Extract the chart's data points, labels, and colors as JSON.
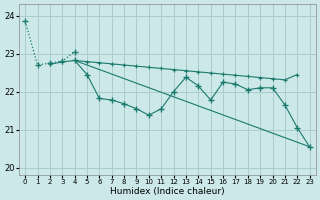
{
  "bg_color": "#cce8e8",
  "grid_color": "#aacccc",
  "line_color": "#1a7a6e",
  "xlabel": "Humidex (Indice chaleur)",
  "ylim": [
    19.8,
    24.3
  ],
  "xlim": [
    -0.5,
    23.5
  ],
  "yticks": [
    20,
    21,
    22,
    23,
    24
  ],
  "xticks": [
    0,
    1,
    2,
    3,
    4,
    5,
    6,
    7,
    8,
    9,
    10,
    11,
    12,
    13,
    14,
    15,
    16,
    17,
    18,
    19,
    20,
    21,
    22,
    23
  ],
  "series0_x": [
    0,
    1,
    2,
    3,
    4
  ],
  "series0_y": [
    23.85,
    22.7,
    22.75,
    22.8,
    23.05
  ],
  "series0_style": "dotted",
  "series1_x": [
    2,
    3,
    4,
    5,
    6,
    7,
    8,
    9,
    10,
    11,
    12,
    13,
    14,
    15,
    16,
    17,
    18,
    19,
    20,
    21,
    22
  ],
  "series1_y": [
    22.72,
    22.78,
    22.82,
    22.79,
    22.76,
    22.73,
    22.7,
    22.67,
    22.64,
    22.61,
    22.58,
    22.55,
    22.52,
    22.49,
    22.46,
    22.43,
    22.4,
    22.37,
    22.34,
    22.31,
    22.45
  ],
  "series2_x": [
    4,
    5,
    6,
    7,
    8,
    9,
    10,
    11,
    12,
    13,
    14,
    15,
    16,
    17,
    18,
    19,
    20,
    21,
    22,
    23
  ],
  "series2_y": [
    22.82,
    22.45,
    21.82,
    21.78,
    21.68,
    21.55,
    21.38,
    21.55,
    22.0,
    22.38,
    22.15,
    21.78,
    22.25,
    22.2,
    22.05,
    22.1,
    22.1,
    21.65,
    21.05,
    20.55
  ],
  "series3_x": [
    4,
    23
  ],
  "series3_y": [
    22.82,
    20.55
  ]
}
